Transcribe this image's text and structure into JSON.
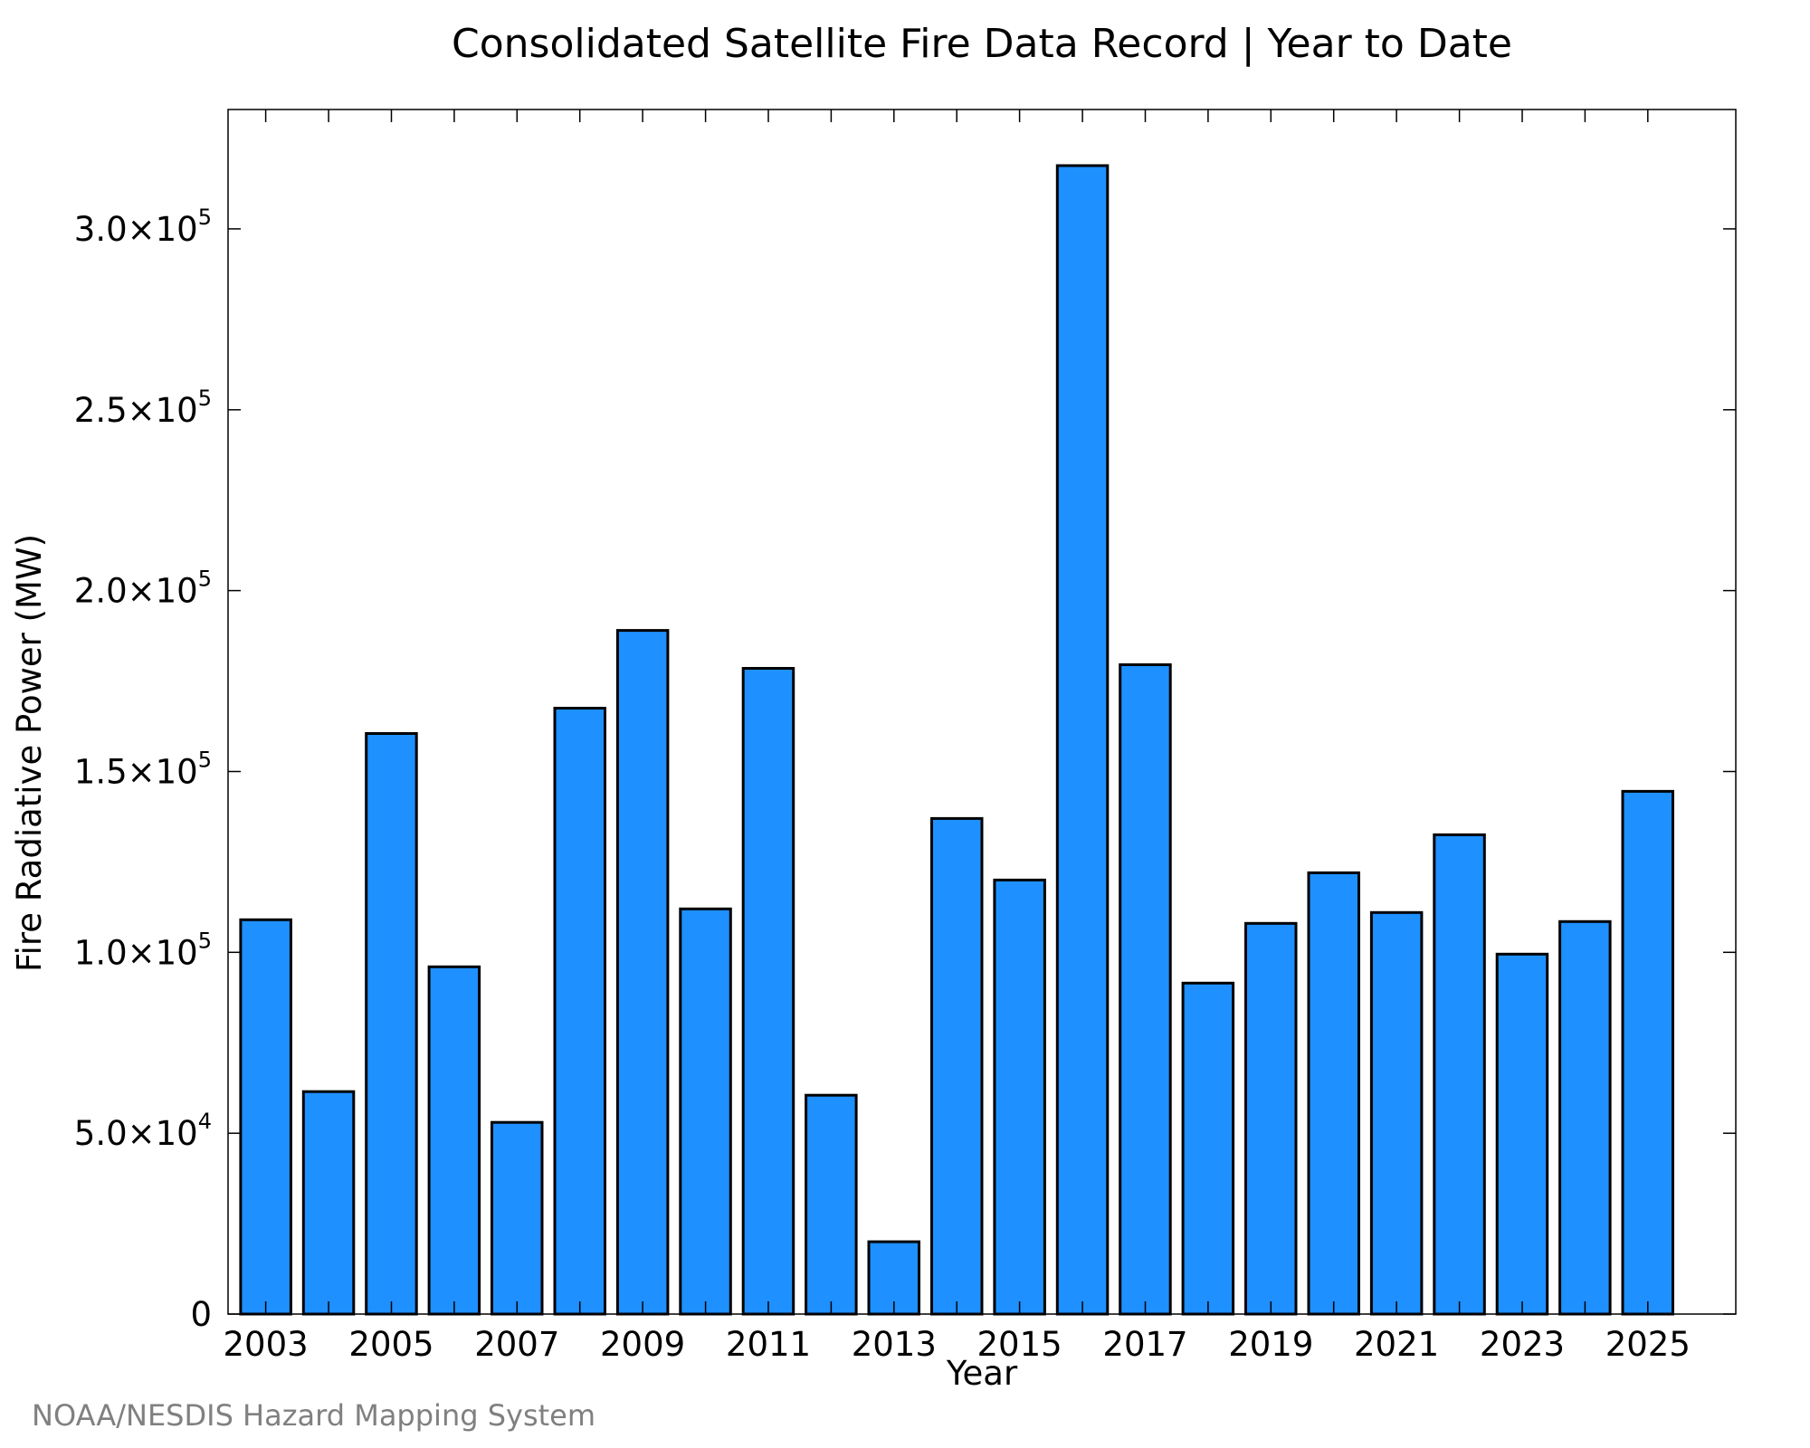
{
  "chart_data": {
    "type": "bar",
    "title": "Consolidated Satellite Fire Data Record | Year to Date",
    "xlabel": "Year",
    "ylabel": "Fire Radiative Power (MW)",
    "credit": "NOAA/NESDIS Hazard Mapping System",
    "categories": [
      2003,
      2004,
      2005,
      2006,
      2007,
      2008,
      2009,
      2010,
      2011,
      2012,
      2013,
      2014,
      2015,
      2016,
      2017,
      2018,
      2019,
      2020,
      2021,
      2022,
      2023,
      2024,
      2025
    ],
    "values": [
      109000,
      61500,
      160500,
      96000,
      53000,
      167500,
      189000,
      112000,
      178500,
      60500,
      20000,
      137000,
      120000,
      317500,
      179500,
      91500,
      108000,
      122000,
      111000,
      132500,
      99500,
      108500,
      144500
    ],
    "x_tick_labels": [
      "2003",
      "2005",
      "2007",
      "2009",
      "2011",
      "2013",
      "2015",
      "2017",
      "2019",
      "2021",
      "2023",
      "2025"
    ],
    "y_ticks": [
      {
        "value": 0,
        "mantissa": "0",
        "exponent": ""
      },
      {
        "value": 50000,
        "mantissa": "5.0×10",
        "exponent": "4"
      },
      {
        "value": 100000,
        "mantissa": "1.0×10",
        "exponent": "5"
      },
      {
        "value": 150000,
        "mantissa": "1.5×10",
        "exponent": "5"
      },
      {
        "value": 200000,
        "mantissa": "2.0×10",
        "exponent": "5"
      },
      {
        "value": 250000,
        "mantissa": "2.5×10",
        "exponent": "5"
      },
      {
        "value": 300000,
        "mantissa": "3.0×10",
        "exponent": "5"
      }
    ],
    "xlim": [
      2002.4,
      2026.4
    ],
    "ylim": [
      0,
      333000
    ],
    "bar_width_years": 0.8,
    "grid": false,
    "legend": "none",
    "colors": {
      "bar_fill": "#1e90ff",
      "bar_stroke": "#000000",
      "axis": "#000000",
      "credit": "#808080"
    }
  }
}
